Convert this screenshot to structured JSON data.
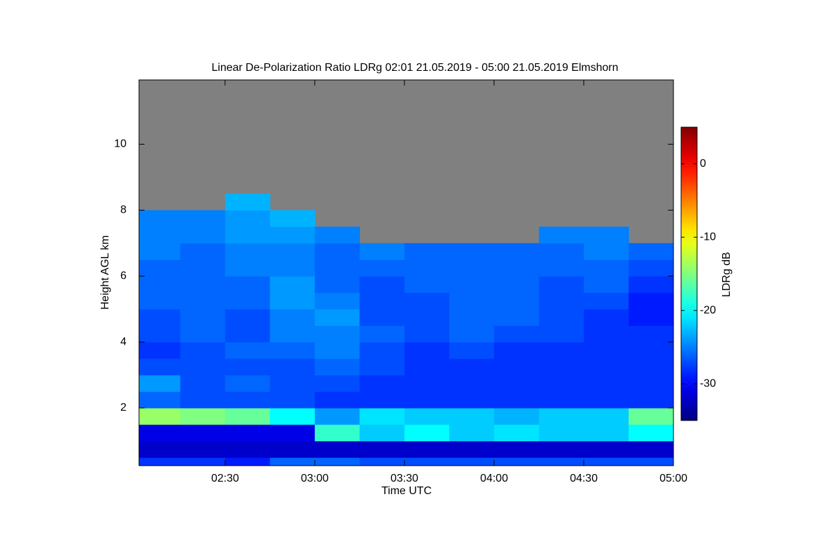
{
  "chart_data": {
    "type": "heatmap",
    "title": "Linear De-Polarization Ratio LDRg   02:01 21.05.2019 - 05:00 21.05.2019 Elmshorn",
    "xlabel": "Time UTC",
    "ylabel": "Height AGL km",
    "colorbar_label": "LDRg dB",
    "xlim": [
      2.02,
      5.0
    ],
    "xticks": [
      {
        "value": 2.5,
        "label": "02:30"
      },
      {
        "value": 3.0,
        "label": "03:00"
      },
      {
        "value": 3.5,
        "label": "03:30"
      },
      {
        "value": 4.0,
        "label": "04:00"
      },
      {
        "value": 4.5,
        "label": "04:30"
      },
      {
        "value": 5.0,
        "label": "05:00"
      }
    ],
    "ylim": [
      0.25,
      11.95
    ],
    "yticks": [
      2,
      4,
      6,
      8,
      10
    ],
    "clim": [
      -35,
      5
    ],
    "cticks": [
      0,
      -10,
      -20,
      -30
    ],
    "colormap": "jet",
    "nodata_color": "#808080",
    "x_edges": [
      2.02,
      2.25,
      2.5,
      2.75,
      3.0,
      3.25,
      3.5,
      3.75,
      4.0,
      4.25,
      4.5,
      4.75,
      5.0
    ],
    "y_edges": [
      0.25,
      0.5,
      1,
      1.5,
      2,
      2.5,
      3,
      3.5,
      4,
      4.5,
      5,
      5.5,
      6,
      6.5,
      7,
      7.5,
      8,
      8.5,
      9,
      9.5,
      10,
      10.5,
      11,
      11.5,
      11.95
    ],
    "z": [
      [
        -28,
        -28,
        -29,
        -26,
        -26,
        -27,
        -27,
        -27,
        -27,
        -27,
        -27,
        -27
      ],
      [
        -32,
        -32,
        -32,
        -32,
        -32,
        -32,
        -32,
        -32,
        -32,
        -32,
        -32,
        -32
      ],
      [
        -31,
        -31,
        -31,
        -31,
        -18,
        -22,
        -20,
        -22,
        -21,
        -22,
        -22,
        -20
      ],
      [
        -14,
        -15,
        -16,
        -20,
        -24,
        -21,
        -22,
        -22,
        -23,
        -22,
        -22,
        -16
      ],
      [
        -26,
        -27,
        -27,
        -27,
        -28,
        -28,
        -28,
        -28,
        -28,
        -28,
        -28,
        -28
      ],
      [
        -24,
        -27,
        -26,
        -27,
        -27,
        -28,
        -28,
        -28,
        -28,
        -28,
        -28,
        -28
      ],
      [
        -27,
        -27,
        -27,
        -27,
        -26,
        -27,
        -28,
        -28,
        -28,
        -28,
        -28,
        -28
      ],
      [
        -28,
        -27,
        -26,
        -26,
        -25,
        -27,
        -28,
        -27,
        -28,
        -28,
        -28,
        -28
      ],
      [
        -27,
        -26,
        -27,
        -25,
        -25,
        -26,
        -27,
        -26,
        -27,
        -27,
        -28,
        -28
      ],
      [
        -27,
        -26,
        -27,
        -25,
        -24,
        -27,
        -27,
        -26,
        -26,
        -27,
        -28,
        -29
      ],
      [
        -26,
        -26,
        -26,
        -24,
        -25,
        -27,
        -27,
        -26,
        -26,
        -27,
        -27,
        -29
      ],
      [
        -26,
        -26,
        -26,
        -24,
        -26,
        -27,
        -26,
        -26,
        -26,
        -27,
        -26,
        -28
      ],
      [
        -26,
        -26,
        -25,
        -25,
        -26,
        -26,
        -26,
        -26,
        -26,
        -26,
        -26,
        -27
      ],
      [
        -25,
        -26,
        -25,
        -25,
        -26,
        -25,
        -26,
        -26,
        -26,
        -26,
        -25,
        -26
      ],
      [
        -25,
        -25,
        -24,
        -24,
        -25,
        null,
        null,
        null,
        null,
        -25,
        -25,
        null
      ],
      [
        -25,
        -25,
        -24,
        -23,
        null,
        null,
        null,
        null,
        null,
        null,
        null,
        null
      ],
      [
        null,
        null,
        -23,
        null,
        null,
        null,
        null,
        null,
        null,
        null,
        null,
        null
      ],
      [
        null,
        null,
        null,
        null,
        null,
        null,
        null,
        null,
        null,
        null,
        null,
        null
      ],
      [
        null,
        null,
        null,
        null,
        null,
        null,
        null,
        null,
        null,
        null,
        null,
        null
      ],
      [
        null,
        null,
        null,
        null,
        null,
        null,
        null,
        null,
        null,
        null,
        null,
        null
      ],
      [
        null,
        null,
        null,
        null,
        null,
        null,
        null,
        null,
        null,
        null,
        null,
        null
      ],
      [
        null,
        null,
        null,
        null,
        null,
        null,
        null,
        null,
        null,
        null,
        null,
        null
      ],
      [
        null,
        null,
        null,
        null,
        null,
        null,
        null,
        null,
        null,
        null,
        null,
        null
      ],
      [
        null,
        null,
        null,
        null,
        null,
        null,
        null,
        null,
        null,
        null,
        null,
        null
      ]
    ]
  }
}
